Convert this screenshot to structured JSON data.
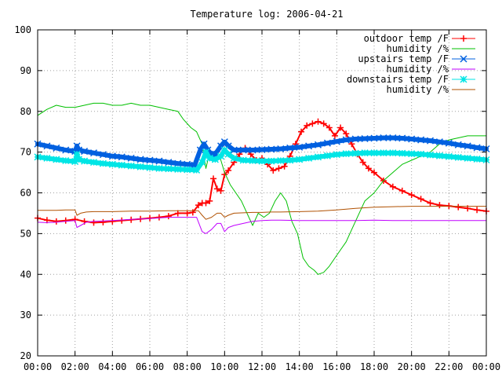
{
  "chart_data": {
    "type": "line",
    "title": "Temperature log: 2006-04-21",
    "xlabel": "",
    "ylabel": "",
    "xlim": [
      0,
      24
    ],
    "ylim": [
      20,
      100
    ],
    "x_ticks": [
      "00:00",
      "02:00",
      "04:00",
      "06:00",
      "08:00",
      "10:00",
      "12:00",
      "14:00",
      "16:00",
      "18:00",
      "20:00",
      "22:00",
      "00:00"
    ],
    "y_ticks": [
      "20",
      "30",
      "40",
      "50",
      "60",
      "70",
      "80",
      "90",
      "100"
    ],
    "grid": true,
    "legend_position": "top-right",
    "series": [
      {
        "name": "outdoor temp /F",
        "color": "#ff0000",
        "marker": "plus",
        "line_width": 2,
        "x": [
          0,
          0.5,
          1,
          1.5,
          2,
          2.5,
          3,
          3.5,
          4,
          4.5,
          5,
          5.5,
          6,
          6.5,
          7,
          7.5,
          8,
          8.3,
          8.6,
          8.8,
          9.0,
          9.2,
          9.4,
          9.6,
          9.8,
          10.0,
          10.2,
          10.5,
          10.8,
          11.1,
          11.4,
          11.7,
          12.0,
          12.3,
          12.6,
          12.9,
          13.2,
          13.5,
          13.8,
          14.1,
          14.4,
          14.7,
          15.0,
          15.3,
          15.6,
          15.9,
          16.2,
          16.5,
          16.8,
          17.1,
          17.4,
          17.7,
          18.0,
          18.5,
          19,
          19.5,
          20,
          20.5,
          21,
          21.5,
          22,
          22.5,
          23,
          23.5,
          24
        ],
        "values": [
          53.8,
          53.3,
          53.0,
          53.2,
          53.5,
          53.0,
          52.7,
          52.8,
          53.0,
          53.2,
          53.4,
          53.6,
          53.8,
          54.0,
          54.3,
          55.0,
          55.0,
          55.2,
          57.0,
          57.5,
          57.5,
          58.0,
          63.5,
          61.0,
          60.5,
          64.5,
          65.5,
          67.5,
          69.5,
          71.0,
          69.5,
          68.0,
          68.5,
          67.0,
          65.5,
          66.0,
          66.5,
          69.0,
          72.0,
          75.0,
          76.5,
          77.0,
          77.5,
          77.0,
          76.0,
          74.0,
          76.0,
          74.5,
          72.0,
          69.5,
          67.5,
          66.0,
          65.0,
          63.0,
          61.5,
          60.5,
          59.5,
          58.5,
          57.5,
          57.0,
          56.8,
          56.5,
          56.2,
          55.8,
          55.5
        ]
      },
      {
        "name": "humidity /%",
        "color": "#00c000",
        "marker": "none",
        "line_width": 1,
        "x": [
          0,
          0.5,
          1,
          1.5,
          2,
          2.5,
          3,
          3.5,
          4,
          4.5,
          5,
          5.5,
          6,
          6.5,
          7,
          7.5,
          7.8,
          8.2,
          8.5,
          8.8,
          9.0,
          9.2,
          9.5,
          9.8,
          10.0,
          10.3,
          10.6,
          10.9,
          11.2,
          11.5,
          11.8,
          12.1,
          12.4,
          12.7,
          13.0,
          13.3,
          13.6,
          13.9,
          14.2,
          14.5,
          14.8,
          15.0,
          15.3,
          15.6,
          15.9,
          16.2,
          16.5,
          16.8,
          17.1,
          17.5,
          18,
          18.5,
          19,
          19.5,
          20,
          20.5,
          21,
          21.5,
          22,
          22.5,
          23,
          23.5,
          24
        ],
        "values": [
          79,
          80.5,
          81.5,
          81,
          81,
          81.5,
          82,
          82,
          81.5,
          81.5,
          82,
          81.5,
          81.5,
          81,
          80.5,
          80,
          78,
          76,
          75,
          72,
          66,
          70,
          70,
          68,
          65,
          62,
          60,
          58,
          55,
          52,
          55,
          54,
          55,
          58,
          60,
          58,
          53,
          50,
          44,
          42,
          41,
          40,
          40.5,
          42,
          44,
          46,
          48,
          51,
          54,
          58,
          60,
          63,
          65,
          67,
          68,
          69,
          70,
          72,
          73,
          73.5,
          74,
          74,
          74
        ]
      },
      {
        "name": "upstairs temp /F",
        "color": "#0060e0",
        "marker": "x",
        "line_width": 6,
        "x": [
          0,
          0.5,
          1,
          1.5,
          2.0,
          2.1,
          2.2,
          2.5,
          3,
          3.5,
          4,
          4.5,
          5,
          5.5,
          6,
          6.5,
          7,
          7.5,
          8,
          8.4,
          8.7,
          8.9,
          9.1,
          9.3,
          9.5,
          9.8,
          10.0,
          10.2,
          10.5,
          11,
          11.5,
          12,
          12.5,
          13,
          13.5,
          14,
          14.5,
          15,
          15.5,
          16,
          16.5,
          17,
          17.5,
          18,
          18.5,
          19,
          19.5,
          20,
          20.5,
          21,
          21.5,
          22,
          22.5,
          23,
          23.5,
          24
        ],
        "values": [
          72,
          71.5,
          71,
          70.5,
          70.2,
          71.5,
          70.5,
          70.2,
          69.8,
          69.4,
          69.0,
          68.8,
          68.5,
          68.2,
          68.0,
          67.8,
          67.5,
          67.2,
          67.0,
          66.8,
          70.5,
          72,
          70.5,
          69.5,
          69.5,
          71.5,
          72.5,
          71.5,
          70.5,
          70.5,
          70.5,
          70.6,
          70.7,
          70.8,
          71.0,
          71.2,
          71.5,
          71.8,
          72.2,
          72.6,
          73.0,
          73.2,
          73.3,
          73.4,
          73.5,
          73.5,
          73.4,
          73.2,
          73.0,
          72.8,
          72.5,
          72.2,
          71.8,
          71.5,
          71.1,
          70.8
        ]
      },
      {
        "name": "humidity /%",
        "color": "#c000ff",
        "marker": "none",
        "line_width": 1,
        "x": [
          0,
          0.5,
          1,
          1.5,
          2.0,
          2.1,
          2.3,
          2.6,
          3,
          4,
          5,
          6,
          7,
          8,
          8.5,
          8.8,
          9.0,
          9.3,
          9.6,
          9.8,
          10.0,
          10.2,
          10.5,
          11,
          11.5,
          12,
          12.5,
          13,
          14,
          15,
          16,
          17,
          18,
          19,
          20,
          21,
          22,
          23,
          24
        ],
        "values": [
          52.8,
          52.7,
          52.8,
          53,
          53.2,
          51.5,
          52,
          52.8,
          53,
          53.2,
          53.5,
          53.7,
          54,
          54,
          54,
          50.5,
          50,
          51,
          52.5,
          52.5,
          50.5,
          51.5,
          52,
          52.5,
          53,
          53.2,
          53.3,
          53.3,
          53.2,
          53.2,
          53.2,
          53.2,
          53.3,
          53.2,
          53.2,
          53.2,
          53.2,
          53.2,
          53.2
        ]
      },
      {
        "name": "downstairs temp /F",
        "color": "#00e5e5",
        "marker": "star",
        "line_width": 6,
        "x": [
          0,
          0.5,
          1,
          1.5,
          2.0,
          2.1,
          2.2,
          2.5,
          3,
          3.5,
          4,
          4.5,
          5,
          5.5,
          6,
          6.5,
          7,
          7.5,
          8,
          8.5,
          8.8,
          9.0,
          9.2,
          9.5,
          9.8,
          10.0,
          10.2,
          10.5,
          11,
          11.5,
          12,
          12.5,
          13,
          13.5,
          14,
          14.5,
          15,
          15.5,
          16,
          16.5,
          17,
          17.5,
          18,
          18.5,
          19,
          19.5,
          20,
          20.5,
          21,
          21.5,
          22,
          22.5,
          23,
          23.5,
          24
        ],
        "values": [
          68.8,
          68.5,
          68.2,
          67.9,
          67.7,
          69.5,
          68.2,
          67.8,
          67.5,
          67.2,
          67.0,
          66.8,
          66.6,
          66.4,
          66.2,
          66.0,
          65.9,
          65.8,
          65.7,
          65.6,
          67.5,
          70,
          68.5,
          68.2,
          69,
          70.5,
          69.5,
          68.5,
          68.0,
          67.9,
          67.8,
          67.8,
          67.9,
          68.0,
          68.2,
          68.5,
          68.8,
          69.1,
          69.4,
          69.6,
          69.7,
          69.8,
          69.8,
          69.8,
          69.8,
          69.7,
          69.6,
          69.5,
          69.3,
          69.1,
          68.9,
          68.7,
          68.5,
          68.3,
          68.1
        ]
      },
      {
        "name": "humidity /%",
        "color": "#b05000",
        "marker": "none",
        "line_width": 1,
        "x": [
          0,
          0.5,
          1,
          1.5,
          2.0,
          2.1,
          2.3,
          2.6,
          3,
          4,
          5,
          6,
          7,
          8,
          8.6,
          8.8,
          9.0,
          9.3,
          9.6,
          9.8,
          10.0,
          10.2,
          10.5,
          11,
          11.5,
          12,
          12.5,
          13,
          14,
          15,
          16,
          17,
          18,
          19,
          20,
          21,
          22,
          23,
          24
        ],
        "values": [
          55.7,
          55.7,
          55.7,
          55.8,
          55.8,
          54.5,
          55,
          55.3,
          55.4,
          55.4,
          55.5,
          55.5,
          55.6,
          55.6,
          55.6,
          54.5,
          53.5,
          54,
          55,
          55,
          54,
          54.5,
          55,
          55.1,
          55.2,
          55.2,
          55.3,
          55.3,
          55.4,
          55.5,
          55.8,
          56.2,
          56.5,
          56.6,
          56.7,
          56.7,
          56.7,
          56.7,
          56.7
        ]
      }
    ]
  }
}
